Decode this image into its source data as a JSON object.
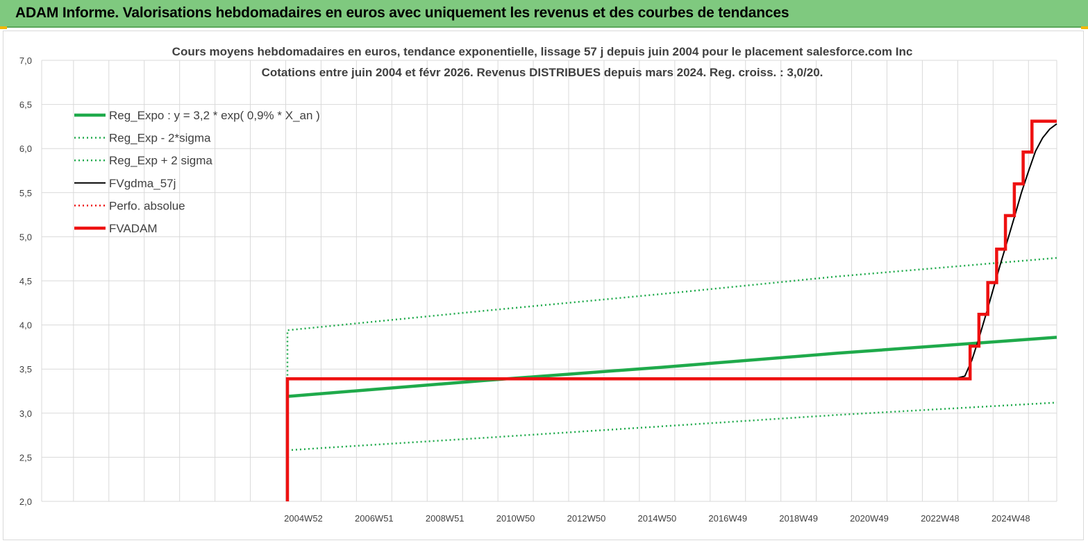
{
  "header": {
    "title": "ADAM Informe. Valorisations hebdomadaires en euros avec uniquement les revenus et des courbes de tendances"
  },
  "colors": {
    "banner": "#7fc97f",
    "green": "#1faa4b",
    "red": "#ee1111",
    "black": "#000000",
    "grid": "#d9d9d9"
  },
  "chart_data": {
    "type": "line",
    "title": "Cours moyens hebdomadaires en euros, tendance exponentielle, lissage 57 j depuis juin 2004 pour le placement salesforce.com Inc",
    "subtitle": "Cotations entre juin 2004 et févr 2026. Revenus DISTRIBUES depuis mars 2024. Reg. croiss. : 3,0/20.",
    "xlabel": "",
    "ylabel": "",
    "ylim": [
      2.0,
      7.0
    ],
    "xlim": [
      1997.5,
      2026.2
    ],
    "y_ticks": [
      "2,0",
      "2,5",
      "3,0",
      "3,5",
      "4,0",
      "4,5",
      "5,0",
      "5,5",
      "6,0",
      "6,5",
      "7,0"
    ],
    "x_ticks": [
      {
        "x": 2004.9,
        "label": "2004W52"
      },
      {
        "x": 2006.9,
        "label": "2006W51"
      },
      {
        "x": 2008.9,
        "label": "2008W51"
      },
      {
        "x": 2010.9,
        "label": "2010W50"
      },
      {
        "x": 2012.9,
        "label": "2012W50"
      },
      {
        "x": 2014.9,
        "label": "2014W50"
      },
      {
        "x": 2016.9,
        "label": "2016W49"
      },
      {
        "x": 2018.9,
        "label": "2018W49"
      },
      {
        "x": 2020.9,
        "label": "2020W49"
      },
      {
        "x": 2022.9,
        "label": "2022W48"
      },
      {
        "x": 2024.9,
        "label": "2024W48"
      }
    ],
    "grid": true,
    "legend_position": "top-left",
    "series": [
      {
        "name": "Reg_Expo : y = 3,2 * exp( 0,9% *  X_an )",
        "style": "solid-thick",
        "color": "#1faa4b",
        "x": [
          2004.45,
          2010.0,
          2015.0,
          2020.0,
          2026.2
        ],
        "y": [
          3.19,
          3.37,
          3.52,
          3.68,
          3.86
        ]
      },
      {
        "name": "Reg_Exp - 2*sigma",
        "style": "dotted",
        "color": "#1faa4b",
        "x": [
          2004.45,
          2010.0,
          2015.0,
          2020.0,
          2026.2
        ],
        "y": [
          2.58,
          2.72,
          2.85,
          2.98,
          3.12
        ]
      },
      {
        "name": "Reg_Exp + 2 sigma",
        "style": "dotted",
        "color": "#1faa4b",
        "x": [
          2004.45,
          2004.45,
          2010.0,
          2015.0,
          2020.0,
          2026.2
        ],
        "y": [
          3.38,
          3.94,
          4.16,
          4.35,
          4.55,
          4.76
        ]
      },
      {
        "name": "FVgdma_57j",
        "style": "solid",
        "color": "#000000",
        "x": [
          2004.45,
          2023.3,
          2023.6,
          2023.8,
          2024.0,
          2024.2,
          2024.4,
          2024.6,
          2024.8,
          2025.0,
          2025.2,
          2025.4,
          2025.6,
          2025.8,
          2026.0,
          2026.2
        ],
        "y": [
          3.39,
          3.39,
          3.42,
          3.6,
          3.85,
          4.12,
          4.4,
          4.68,
          4.95,
          5.22,
          5.5,
          5.74,
          5.97,
          6.12,
          6.22,
          6.28
        ]
      },
      {
        "name": "Perfo. absolue",
        "style": "dotted",
        "color": "#ee1111",
        "x": [],
        "y": []
      },
      {
        "name": "FVADAM",
        "style": "solid-thick",
        "color": "#ee1111",
        "x": [
          2004.45,
          2004.45,
          2023.75,
          2023.75,
          2024.0,
          2024.0,
          2024.25,
          2024.25,
          2024.5,
          2024.5,
          2024.75,
          2024.75,
          2025.0,
          2025.0,
          2025.25,
          2025.25,
          2025.5,
          2025.5,
          2025.75,
          2025.75,
          2026.0,
          2026.0,
          2026.2
        ],
        "y": [
          2.0,
          3.39,
          3.39,
          3.76,
          3.76,
          4.12,
          4.12,
          4.48,
          4.48,
          4.86,
          4.86,
          5.24,
          5.24,
          5.6,
          5.6,
          5.96,
          5.96,
          6.31,
          6.31,
          6.31,
          6.31,
          6.31,
          6.31
        ]
      }
    ]
  }
}
